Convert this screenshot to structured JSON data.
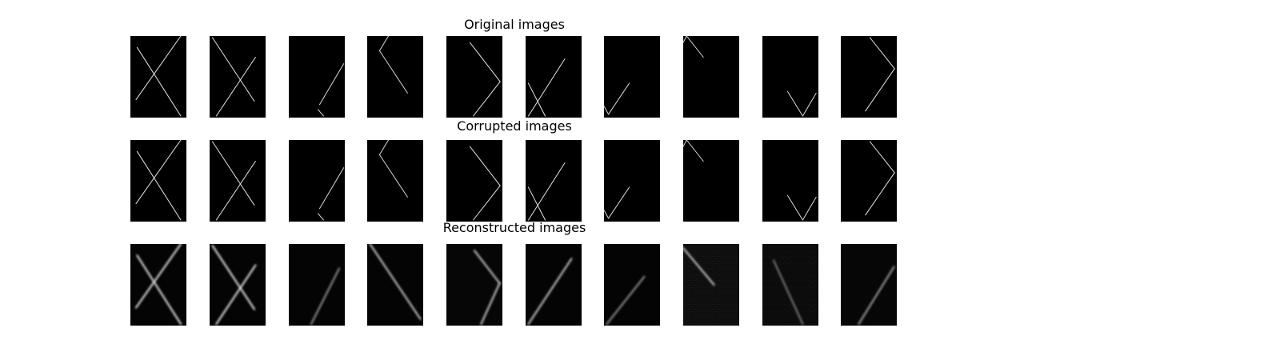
{
  "figure": {
    "rows": [
      {
        "title": "Original images",
        "panels": [
          {
            "lines": [
              [
                [
                  0.12,
                  0.14
                ],
                [
                  0.9,
                  0.98
                ]
              ],
              [
                [
                  0.9,
                  0.0
                ],
                [
                  0.1,
                  0.78
                ]
              ]
            ],
            "blur": 0,
            "bright": 0.9,
            "noise": 0
          },
          {
            "lines": [
              [
                [
                  0.05,
                  0.02
                ],
                [
                  0.8,
                  0.8
                ]
              ],
              [
                [
                  0.82,
                  0.26
                ],
                [
                  0.12,
                  0.98
                ]
              ]
            ],
            "blur": 0,
            "bright": 0.9,
            "noise": 0
          },
          {
            "lines": [
              [
                [
                  0.98,
                  0.34
                ],
                [
                  0.55,
                  0.84
                ]
              ],
              [
                [
                  0.52,
                  0.9
                ],
                [
                  0.62,
                  0.98
                ]
              ]
            ],
            "blur": 0,
            "bright": 0.85,
            "noise": 0
          },
          {
            "lines": [
              [
                [
                  0.22,
                  0.18
                ],
                [
                  0.72,
                  0.7
                ]
              ],
              [
                [
                  0.22,
                  0.18
                ],
                [
                  0.38,
                  0.0
                ]
              ]
            ],
            "blur": 0,
            "bright": 0.85,
            "noise": 0
          },
          {
            "lines": [
              [
                [
                  0.42,
                  0.08
                ],
                [
                  0.96,
                  0.56
                ]
              ],
              [
                [
                  0.96,
                  0.56
                ],
                [
                  0.48,
                  0.98
                ]
              ]
            ],
            "blur": 0,
            "bright": 0.9,
            "noise": 0
          },
          {
            "lines": [
              [
                [
                  0.7,
                  0.28
                ],
                [
                  0.05,
                  0.98
                ]
              ],
              [
                [
                  0.05,
                  0.58
                ],
                [
                  0.35,
                  0.98
                ]
              ]
            ],
            "blur": 0,
            "bright": 0.9,
            "noise": 0
          },
          {
            "lines": [
              [
                [
                  0.45,
                  0.58
                ],
                [
                  0.08,
                  0.96
                ]
              ],
              [
                [
                  0.0,
                  0.86
                ],
                [
                  0.08,
                  0.96
                ]
              ]
            ],
            "blur": 0,
            "bright": 0.85,
            "noise": 0
          },
          {
            "lines": [
              [
                [
                  0.0,
                  0.08
                ],
                [
                  0.06,
                  0.0
                ]
              ],
              [
                [
                  0.06,
                  0.0
                ],
                [
                  0.36,
                  0.26
                ]
              ]
            ],
            "blur": 0,
            "bright": 0.85,
            "noise": 0
          },
          {
            "lines": [
              [
                [
                  0.45,
                  0.68
                ],
                [
                  0.72,
                  0.98
                ]
              ],
              [
                [
                  0.72,
                  0.98
                ],
                [
                  0.96,
                  0.7
                ]
              ]
            ],
            "blur": 0,
            "bright": 0.85,
            "noise": 0
          },
          {
            "lines": [
              [
                [
                  0.52,
                  0.02
                ],
                [
                  0.96,
                  0.4
                ]
              ],
              [
                [
                  0.96,
                  0.4
                ],
                [
                  0.44,
                  0.92
                ]
              ]
            ],
            "blur": 0,
            "bright": 0.9,
            "noise": 0
          }
        ]
      },
      {
        "title": "Corrupted images",
        "panels": [
          {
            "lines": [
              [
                [
                  0.12,
                  0.14
                ],
                [
                  0.9,
                  0.98
                ]
              ],
              [
                [
                  0.9,
                  0.0
                ],
                [
                  0.1,
                  0.78
                ]
              ]
            ],
            "blur": 0,
            "bright": 0.9,
            "noise": 0
          },
          {
            "lines": [
              [
                [
                  0.05,
                  0.02
                ],
                [
                  0.8,
                  0.8
                ]
              ],
              [
                [
                  0.82,
                  0.26
                ],
                [
                  0.12,
                  0.98
                ]
              ]
            ],
            "blur": 0,
            "bright": 0.9,
            "noise": 0
          },
          {
            "lines": [
              [
                [
                  0.98,
                  0.34
                ],
                [
                  0.55,
                  0.84
                ]
              ],
              [
                [
                  0.52,
                  0.9
                ],
                [
                  0.62,
                  0.98
                ]
              ]
            ],
            "blur": 0,
            "bright": 0.85,
            "noise": 0
          },
          {
            "lines": [
              [
                [
                  0.22,
                  0.18
                ],
                [
                  0.72,
                  0.7
                ]
              ],
              [
                [
                  0.22,
                  0.18
                ],
                [
                  0.38,
                  0.0
                ]
              ]
            ],
            "blur": 0,
            "bright": 0.85,
            "noise": 0
          },
          {
            "lines": [
              [
                [
                  0.42,
                  0.08
                ],
                [
                  0.96,
                  0.56
                ]
              ],
              [
                [
                  0.96,
                  0.56
                ],
                [
                  0.48,
                  0.98
                ]
              ]
            ],
            "blur": 0,
            "bright": 0.9,
            "noise": 0
          },
          {
            "lines": [
              [
                [
                  0.7,
                  0.28
                ],
                [
                  0.05,
                  0.98
                ]
              ],
              [
                [
                  0.05,
                  0.58
                ],
                [
                  0.35,
                  0.98
                ]
              ]
            ],
            "blur": 0,
            "bright": 0.9,
            "noise": 0
          },
          {
            "lines": [
              [
                [
                  0.45,
                  0.58
                ],
                [
                  0.08,
                  0.96
                ]
              ],
              [
                [
                  0.0,
                  0.86
                ],
                [
                  0.08,
                  0.96
                ]
              ]
            ],
            "blur": 0,
            "bright": 0.85,
            "noise": 0
          },
          {
            "lines": [
              [
                [
                  0.0,
                  0.08
                ],
                [
                  0.06,
                  0.0
                ]
              ],
              [
                [
                  0.06,
                  0.0
                ],
                [
                  0.36,
                  0.26
                ]
              ]
            ],
            "blur": 0,
            "bright": 0.85,
            "noise": 0
          },
          {
            "lines": [
              [
                [
                  0.45,
                  0.68
                ],
                [
                  0.72,
                  0.98
                ]
              ],
              [
                [
                  0.72,
                  0.98
                ],
                [
                  0.96,
                  0.7
                ]
              ]
            ],
            "blur": 0,
            "bright": 0.85,
            "noise": 0
          },
          {
            "lines": [
              [
                [
                  0.52,
                  0.02
                ],
                [
                  0.96,
                  0.4
                ]
              ],
              [
                [
                  0.96,
                  0.4
                ],
                [
                  0.44,
                  0.92
                ]
              ]
            ],
            "blur": 0,
            "bright": 0.9,
            "noise": 0
          }
        ]
      },
      {
        "title": "Reconstructed images",
        "panels": [
          {
            "lines": [
              [
                [
                  0.12,
                  0.14
                ],
                [
                  0.9,
                  0.98
                ]
              ],
              [
                [
                  0.9,
                  0.0
                ],
                [
                  0.1,
                  0.78
                ]
              ]
            ],
            "blur": 1.2,
            "bright": 0.85,
            "noise": 0.05
          },
          {
            "lines": [
              [
                [
                  0.05,
                  0.02
                ],
                [
                  0.8,
                  0.8
                ]
              ],
              [
                [
                  0.82,
                  0.26
                ],
                [
                  0.12,
                  0.98
                ]
              ]
            ],
            "blur": 1.2,
            "bright": 0.85,
            "noise": 0.05
          },
          {
            "lines": [
              [
                [
                  0.9,
                  0.3
                ],
                [
                  0.4,
                  0.98
                ]
              ]
            ],
            "blur": 1.3,
            "bright": 0.55,
            "noise": 0.06
          },
          {
            "lines": [
              [
                [
                  0.05,
                  0.0
                ],
                [
                  0.95,
                  0.92
                ]
              ]
            ],
            "blur": 1.2,
            "bright": 0.75,
            "noise": 0.06
          },
          {
            "lines": [
              [
                [
                  0.5,
                  0.08
                ],
                [
                  0.95,
                  0.48
                ]
              ],
              [
                [
                  0.95,
                  0.48
                ],
                [
                  0.62,
                  0.98
                ]
              ]
            ],
            "blur": 1.3,
            "bright": 0.75,
            "noise": 0.08
          },
          {
            "lines": [
              [
                [
                  0.82,
                  0.18
                ],
                [
                  0.05,
                  0.98
                ]
              ]
            ],
            "blur": 1.2,
            "bright": 0.75,
            "noise": 0.06
          },
          {
            "lines": [
              [
                [
                  0.72,
                  0.4
                ],
                [
                  0.05,
                  0.98
                ]
              ]
            ],
            "blur": 1.3,
            "bright": 0.55,
            "noise": 0.06
          },
          {
            "lines": [
              [
                [
                  0.0,
                  0.05
                ],
                [
                  0.55,
                  0.5
                ]
              ]
            ],
            "blur": 1.4,
            "bright": 0.75,
            "noise": 0.2
          },
          {
            "lines": [
              [
                [
                  0.2,
                  0.2
                ],
                [
                  0.72,
                  0.98
                ]
              ]
            ],
            "blur": 1.4,
            "bright": 0.45,
            "noise": 0.16
          },
          {
            "lines": [
              [
                [
                  0.95,
                  0.28
                ],
                [
                  0.32,
                  0.98
                ]
              ]
            ],
            "blur": 1.3,
            "bright": 0.6,
            "noise": 0.08
          }
        ]
      }
    ]
  }
}
